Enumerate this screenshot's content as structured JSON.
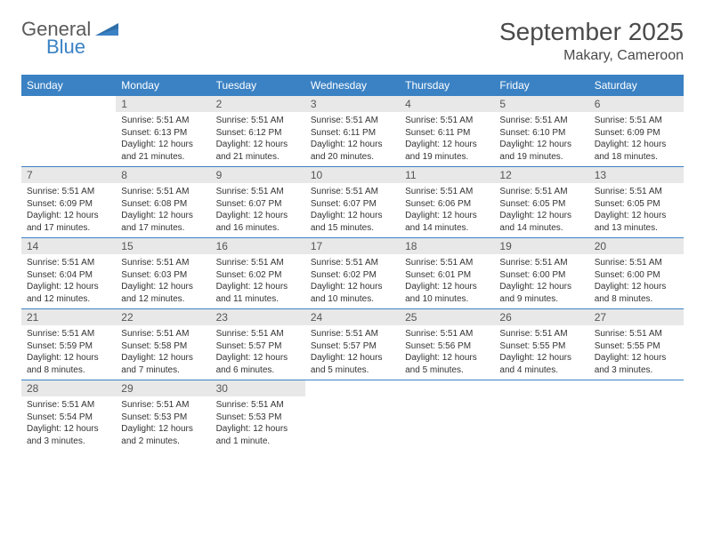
{
  "logo": {
    "general": "General",
    "blue": "Blue"
  },
  "title": "September 2025",
  "location": "Makary, Cameroon",
  "colors": {
    "header_bg": "#3b82c4",
    "header_text": "#ffffff",
    "daynum_bg": "#e8e8e8",
    "border": "#3b82c4",
    "text": "#333333",
    "title_text": "#4a4a4a"
  },
  "typography": {
    "title_fontsize": 28,
    "location_fontsize": 16,
    "header_fontsize": 12,
    "daynum_fontsize": 12,
    "body_fontsize": 10
  },
  "day_headers": [
    "Sunday",
    "Monday",
    "Tuesday",
    "Wednesday",
    "Thursday",
    "Friday",
    "Saturday"
  ],
  "weeks": [
    [
      {
        "num": "",
        "sunrise": "",
        "sunset": "",
        "daylight": ""
      },
      {
        "num": "1",
        "sunrise": "Sunrise: 5:51 AM",
        "sunset": "Sunset: 6:13 PM",
        "daylight": "Daylight: 12 hours and 21 minutes."
      },
      {
        "num": "2",
        "sunrise": "Sunrise: 5:51 AM",
        "sunset": "Sunset: 6:12 PM",
        "daylight": "Daylight: 12 hours and 21 minutes."
      },
      {
        "num": "3",
        "sunrise": "Sunrise: 5:51 AM",
        "sunset": "Sunset: 6:11 PM",
        "daylight": "Daylight: 12 hours and 20 minutes."
      },
      {
        "num": "4",
        "sunrise": "Sunrise: 5:51 AM",
        "sunset": "Sunset: 6:11 PM",
        "daylight": "Daylight: 12 hours and 19 minutes."
      },
      {
        "num": "5",
        "sunrise": "Sunrise: 5:51 AM",
        "sunset": "Sunset: 6:10 PM",
        "daylight": "Daylight: 12 hours and 19 minutes."
      },
      {
        "num": "6",
        "sunrise": "Sunrise: 5:51 AM",
        "sunset": "Sunset: 6:09 PM",
        "daylight": "Daylight: 12 hours and 18 minutes."
      }
    ],
    [
      {
        "num": "7",
        "sunrise": "Sunrise: 5:51 AM",
        "sunset": "Sunset: 6:09 PM",
        "daylight": "Daylight: 12 hours and 17 minutes."
      },
      {
        "num": "8",
        "sunrise": "Sunrise: 5:51 AM",
        "sunset": "Sunset: 6:08 PM",
        "daylight": "Daylight: 12 hours and 17 minutes."
      },
      {
        "num": "9",
        "sunrise": "Sunrise: 5:51 AM",
        "sunset": "Sunset: 6:07 PM",
        "daylight": "Daylight: 12 hours and 16 minutes."
      },
      {
        "num": "10",
        "sunrise": "Sunrise: 5:51 AM",
        "sunset": "Sunset: 6:07 PM",
        "daylight": "Daylight: 12 hours and 15 minutes."
      },
      {
        "num": "11",
        "sunrise": "Sunrise: 5:51 AM",
        "sunset": "Sunset: 6:06 PM",
        "daylight": "Daylight: 12 hours and 14 minutes."
      },
      {
        "num": "12",
        "sunrise": "Sunrise: 5:51 AM",
        "sunset": "Sunset: 6:05 PM",
        "daylight": "Daylight: 12 hours and 14 minutes."
      },
      {
        "num": "13",
        "sunrise": "Sunrise: 5:51 AM",
        "sunset": "Sunset: 6:05 PM",
        "daylight": "Daylight: 12 hours and 13 minutes."
      }
    ],
    [
      {
        "num": "14",
        "sunrise": "Sunrise: 5:51 AM",
        "sunset": "Sunset: 6:04 PM",
        "daylight": "Daylight: 12 hours and 12 minutes."
      },
      {
        "num": "15",
        "sunrise": "Sunrise: 5:51 AM",
        "sunset": "Sunset: 6:03 PM",
        "daylight": "Daylight: 12 hours and 12 minutes."
      },
      {
        "num": "16",
        "sunrise": "Sunrise: 5:51 AM",
        "sunset": "Sunset: 6:02 PM",
        "daylight": "Daylight: 12 hours and 11 minutes."
      },
      {
        "num": "17",
        "sunrise": "Sunrise: 5:51 AM",
        "sunset": "Sunset: 6:02 PM",
        "daylight": "Daylight: 12 hours and 10 minutes."
      },
      {
        "num": "18",
        "sunrise": "Sunrise: 5:51 AM",
        "sunset": "Sunset: 6:01 PM",
        "daylight": "Daylight: 12 hours and 10 minutes."
      },
      {
        "num": "19",
        "sunrise": "Sunrise: 5:51 AM",
        "sunset": "Sunset: 6:00 PM",
        "daylight": "Daylight: 12 hours and 9 minutes."
      },
      {
        "num": "20",
        "sunrise": "Sunrise: 5:51 AM",
        "sunset": "Sunset: 6:00 PM",
        "daylight": "Daylight: 12 hours and 8 minutes."
      }
    ],
    [
      {
        "num": "21",
        "sunrise": "Sunrise: 5:51 AM",
        "sunset": "Sunset: 5:59 PM",
        "daylight": "Daylight: 12 hours and 8 minutes."
      },
      {
        "num": "22",
        "sunrise": "Sunrise: 5:51 AM",
        "sunset": "Sunset: 5:58 PM",
        "daylight": "Daylight: 12 hours and 7 minutes."
      },
      {
        "num": "23",
        "sunrise": "Sunrise: 5:51 AM",
        "sunset": "Sunset: 5:57 PM",
        "daylight": "Daylight: 12 hours and 6 minutes."
      },
      {
        "num": "24",
        "sunrise": "Sunrise: 5:51 AM",
        "sunset": "Sunset: 5:57 PM",
        "daylight": "Daylight: 12 hours and 5 minutes."
      },
      {
        "num": "25",
        "sunrise": "Sunrise: 5:51 AM",
        "sunset": "Sunset: 5:56 PM",
        "daylight": "Daylight: 12 hours and 5 minutes."
      },
      {
        "num": "26",
        "sunrise": "Sunrise: 5:51 AM",
        "sunset": "Sunset: 5:55 PM",
        "daylight": "Daylight: 12 hours and 4 minutes."
      },
      {
        "num": "27",
        "sunrise": "Sunrise: 5:51 AM",
        "sunset": "Sunset: 5:55 PM",
        "daylight": "Daylight: 12 hours and 3 minutes."
      }
    ],
    [
      {
        "num": "28",
        "sunrise": "Sunrise: 5:51 AM",
        "sunset": "Sunset: 5:54 PM",
        "daylight": "Daylight: 12 hours and 3 minutes."
      },
      {
        "num": "29",
        "sunrise": "Sunrise: 5:51 AM",
        "sunset": "Sunset: 5:53 PM",
        "daylight": "Daylight: 12 hours and 2 minutes."
      },
      {
        "num": "30",
        "sunrise": "Sunrise: 5:51 AM",
        "sunset": "Sunset: 5:53 PM",
        "daylight": "Daylight: 12 hours and 1 minute."
      },
      {
        "num": "",
        "sunrise": "",
        "sunset": "",
        "daylight": ""
      },
      {
        "num": "",
        "sunrise": "",
        "sunset": "",
        "daylight": ""
      },
      {
        "num": "",
        "sunrise": "",
        "sunset": "",
        "daylight": ""
      },
      {
        "num": "",
        "sunrise": "",
        "sunset": "",
        "daylight": ""
      }
    ]
  ]
}
